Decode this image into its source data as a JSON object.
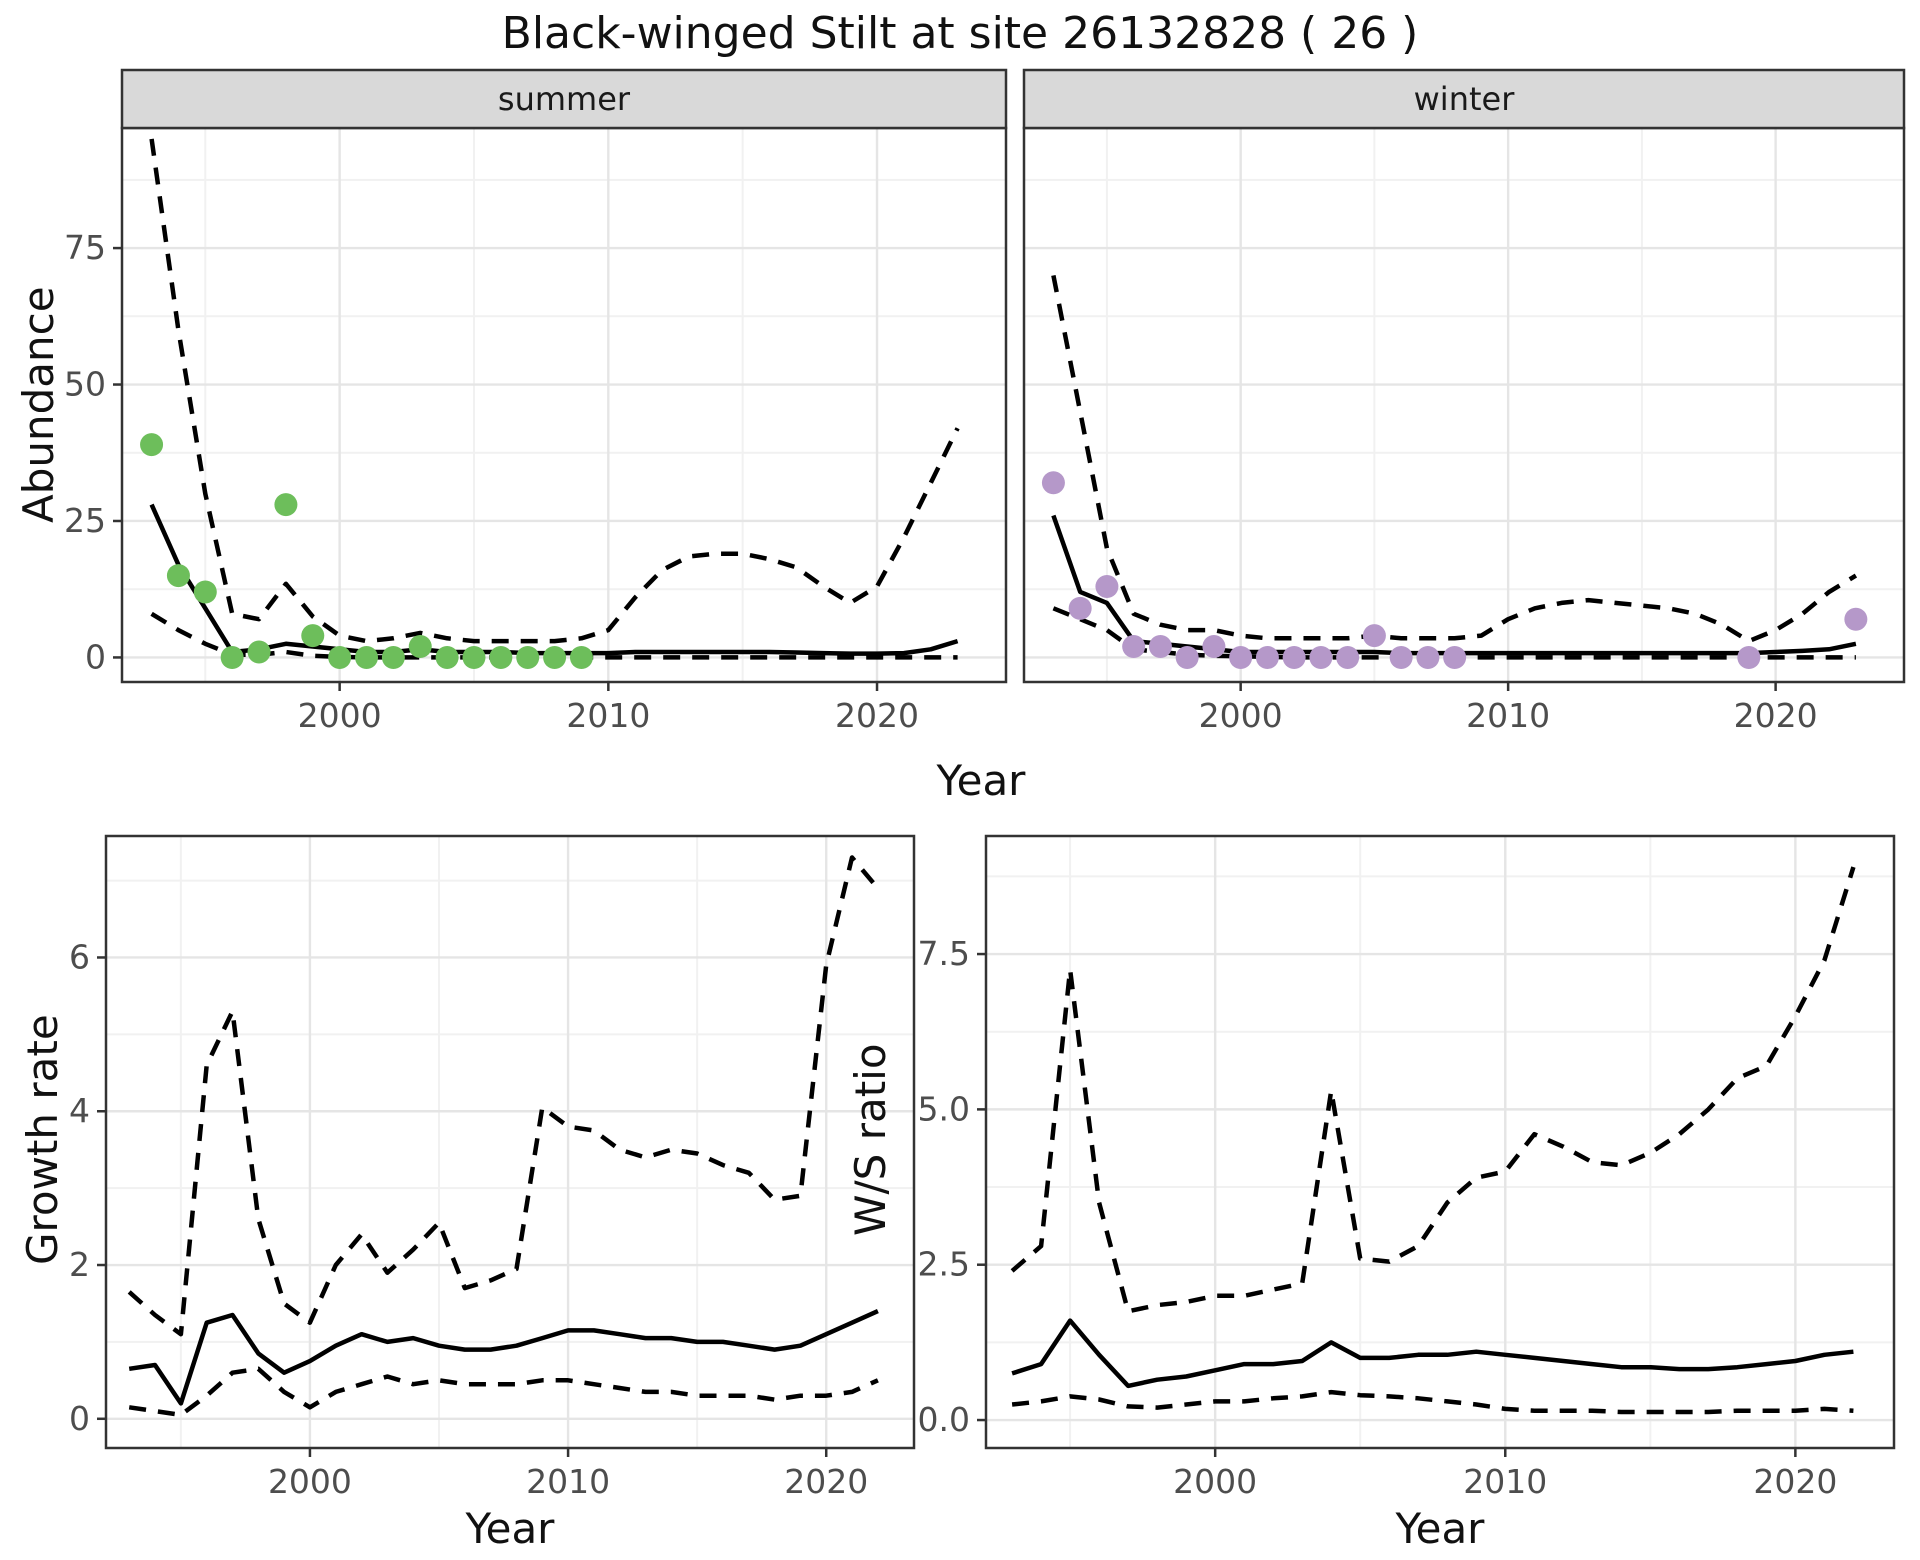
{
  "title": "Black-winged Stilt at site 26132828 ( 26 )",
  "axis_labels": {
    "abundance": "Abundance",
    "year": "Year",
    "growth": "Growth rate",
    "ws": "W/S ratio"
  },
  "facets": {
    "summer": "summer",
    "winter": "winter"
  },
  "colors": {
    "summer_point": "#6dbe5b",
    "winter_point": "#b598c9",
    "line": "#000000",
    "grid_major": "#e5e5e5",
    "grid_minor": "#f1f1f1",
    "strip_bg": "#d9d9d9",
    "panel_border": "#333333",
    "tick_label": "#4d4d4d"
  },
  "chart_data": [
    {
      "id": "summer",
      "type": "scatter",
      "facet_label": "summer",
      "xlabel": "Year",
      "ylabel": "Abundance",
      "xlim": [
        1991.9,
        2024.8
      ],
      "ylim": [
        -4.5,
        97
      ],
      "x_ticks": [
        2000,
        2010,
        2020
      ],
      "x_tick_labels": [
        "2000",
        "2010",
        "2020"
      ],
      "x_minor": [
        1995,
        2005,
        2015
      ],
      "y_ticks": [
        0,
        25,
        50,
        75
      ],
      "y_tick_labels": [
        "0",
        "25",
        "50",
        "75"
      ],
      "y_minor": [
        12.5,
        37.5,
        62.5,
        87.5
      ],
      "observed": {
        "years": [
          1993,
          1994,
          1995,
          1996,
          1997,
          1998,
          1999,
          2000,
          2001,
          2002,
          2003,
          2004,
          2005,
          2006,
          2007,
          2008,
          2009
        ],
        "values": [
          39,
          15,
          12,
          0,
          1,
          28,
          4,
          0,
          0,
          0,
          2,
          0,
          0,
          0,
          0,
          0,
          0
        ]
      },
      "median": {
        "start_year": 1993,
        "values": [
          28,
          17,
          9,
          1,
          1.5,
          2.5,
          2,
          1.5,
          1,
          1,
          1.5,
          1,
          1,
          1,
          0.8,
          0.8,
          0.8,
          0.8,
          1,
          1,
          1,
          1,
          1,
          1,
          0.9,
          0.8,
          0.7,
          0.7,
          0.8,
          1.5,
          3
        ]
      },
      "upper": {
        "start_year": 1993,
        "values": [
          95,
          60,
          30,
          8,
          7,
          13.5,
          7.5,
          4,
          3,
          3.5,
          4.5,
          3.5,
          3,
          3,
          3,
          3,
          3.5,
          5,
          11,
          16,
          18.5,
          19,
          19,
          18,
          16.5,
          13,
          10,
          13,
          22,
          32,
          42
        ]
      },
      "lower": {
        "start_year": 1993,
        "values": [
          8,
          5,
          2.5,
          0.5,
          0.5,
          1,
          0.3,
          0.1,
          0,
          0,
          0,
          0,
          0,
          0,
          0,
          0,
          0,
          0,
          0,
          0,
          0,
          0,
          0,
          0,
          0,
          0,
          0,
          0,
          0,
          0,
          0
        ]
      }
    },
    {
      "id": "winter",
      "type": "scatter",
      "facet_label": "winter",
      "xlabel": "Year",
      "ylabel": "Abundance",
      "xlim": [
        1991.9,
        2024.8
      ],
      "ylim": [
        -4.5,
        97
      ],
      "x_ticks": [
        2000,
        2010,
        2020
      ],
      "x_tick_labels": [
        "2000",
        "2010",
        "2020"
      ],
      "x_minor": [
        1995,
        2005,
        2015
      ],
      "y_ticks": [
        0,
        25,
        50,
        75
      ],
      "y_tick_labels": [
        "0",
        "25",
        "50",
        "75"
      ],
      "y_minor": [
        12.5,
        37.5,
        62.5,
        87.5
      ],
      "observed": {
        "years": [
          1993,
          1994,
          1995,
          1996,
          1997,
          1998,
          1999,
          2000,
          2001,
          2002,
          2003,
          2004,
          2005,
          2006,
          2007,
          2008,
          2019,
          2023
        ],
        "values": [
          32,
          9,
          13,
          2,
          2,
          0,
          2,
          0,
          0,
          0,
          0,
          0,
          4,
          0,
          0,
          0,
          0,
          7
        ]
      },
      "median": {
        "start_year": 1993,
        "values": [
          26,
          12,
          10,
          3,
          2.5,
          2,
          1.5,
          1,
          1,
          1,
          1,
          1,
          1,
          0.8,
          0.8,
          0.8,
          0.8,
          0.8,
          0.8,
          0.8,
          0.8,
          0.8,
          0.8,
          0.8,
          0.8,
          0.8,
          0.8,
          1,
          1.2,
          1.5,
          2.5
        ]
      },
      "upper": {
        "start_year": 1993,
        "values": [
          70,
          45,
          20,
          8,
          6,
          5,
          5,
          4,
          3.5,
          3.5,
          3.5,
          3.5,
          4,
          3.5,
          3.5,
          3.5,
          4,
          7,
          9,
          10,
          10.5,
          10,
          9.5,
          9,
          8,
          6,
          3,
          5,
          8,
          12,
          15
        ]
      },
      "lower": {
        "start_year": 1993,
        "values": [
          9,
          7,
          5,
          1.5,
          1,
          0.5,
          0.3,
          0.2,
          0.1,
          0,
          0,
          0,
          0,
          0,
          0,
          0,
          0,
          0,
          0,
          0,
          0,
          0,
          0,
          0,
          0,
          0,
          0,
          0,
          0,
          0,
          0
        ]
      }
    },
    {
      "id": "growth",
      "type": "line",
      "facet_label": "",
      "xlabel": "Year",
      "ylabel": "Growth rate",
      "xlim": [
        1992.1,
        2023.4
      ],
      "ylim": [
        -0.38,
        7.58
      ],
      "x_ticks": [
        2000,
        2010,
        2020
      ],
      "x_tick_labels": [
        "2000",
        "2010",
        "2020"
      ],
      "x_minor": [
        1995,
        2005,
        2015
      ],
      "y_ticks": [
        0,
        2,
        4,
        6
      ],
      "y_tick_labels": [
        "0",
        "2",
        "4",
        "6"
      ],
      "y_minor": [
        1,
        3,
        5,
        7
      ],
      "median": {
        "start_year": 1993,
        "values": [
          0.65,
          0.7,
          0.2,
          1.25,
          1.35,
          0.85,
          0.6,
          0.75,
          0.95,
          1.1,
          1.0,
          1.05,
          0.95,
          0.9,
          0.9,
          0.95,
          1.05,
          1.15,
          1.15,
          1.1,
          1.05,
          1.05,
          1.0,
          1.0,
          0.95,
          0.9,
          0.95,
          1.1,
          1.25,
          1.4
        ]
      },
      "upper": {
        "start_year": 1993,
        "values": [
          1.65,
          1.35,
          1.1,
          4.6,
          5.3,
          2.6,
          1.5,
          1.25,
          2.0,
          2.4,
          1.9,
          2.2,
          2.55,
          1.7,
          1.8,
          1.95,
          4.05,
          3.8,
          3.75,
          3.5,
          3.4,
          3.5,
          3.45,
          3.3,
          3.2,
          2.85,
          2.9,
          5.9,
          7.3,
          6.9
        ]
      },
      "lower": {
        "start_year": 1993,
        "values": [
          0.15,
          0.1,
          0.05,
          0.3,
          0.6,
          0.65,
          0.35,
          0.15,
          0.35,
          0.45,
          0.55,
          0.45,
          0.5,
          0.45,
          0.45,
          0.45,
          0.5,
          0.5,
          0.45,
          0.4,
          0.35,
          0.35,
          0.3,
          0.3,
          0.3,
          0.25,
          0.3,
          0.3,
          0.35,
          0.5
        ]
      }
    },
    {
      "id": "ws",
      "type": "line",
      "facet_label": "",
      "xlabel": "Year",
      "ylabel": "W/S ratio",
      "xlim": [
        1992.1,
        2023.4
      ],
      "ylim": [
        -0.45,
        9.4
      ],
      "x_ticks": [
        2000,
        2010,
        2020
      ],
      "x_tick_labels": [
        "2000",
        "2010",
        "2020"
      ],
      "x_minor": [
        1995,
        2005,
        2015
      ],
      "y_ticks": [
        0,
        2.5,
        5,
        7.5
      ],
      "y_tick_labels": [
        "0.0",
        "2.5",
        "5.0",
        "7.5"
      ],
      "y_minor": [
        1.25,
        3.75,
        6.25,
        8.75
      ],
      "median": {
        "start_year": 1993,
        "values": [
          0.75,
          0.9,
          1.6,
          1.05,
          0.55,
          0.65,
          0.7,
          0.8,
          0.9,
          0.9,
          0.95,
          1.25,
          1.0,
          1.0,
          1.05,
          1.05,
          1.1,
          1.05,
          1.0,
          0.95,
          0.9,
          0.85,
          0.85,
          0.82,
          0.82,
          0.85,
          0.9,
          0.95,
          1.05,
          1.1
        ]
      },
      "upper": {
        "start_year": 1993,
        "values": [
          2.4,
          2.8,
          7.25,
          3.5,
          1.75,
          1.85,
          1.9,
          2.0,
          2.0,
          2.1,
          2.2,
          5.3,
          2.6,
          2.55,
          2.8,
          3.5,
          3.9,
          4.0,
          4.6,
          4.4,
          4.15,
          4.1,
          4.3,
          4.6,
          5.0,
          5.5,
          5.7,
          6.5,
          7.4,
          8.9
        ]
      },
      "lower": {
        "start_year": 1993,
        "values": [
          0.25,
          0.3,
          0.38,
          0.33,
          0.22,
          0.2,
          0.25,
          0.3,
          0.3,
          0.35,
          0.38,
          0.45,
          0.4,
          0.38,
          0.35,
          0.3,
          0.25,
          0.18,
          0.15,
          0.15,
          0.15,
          0.13,
          0.13,
          0.13,
          0.13,
          0.15,
          0.15,
          0.15,
          0.18,
          0.15
        ]
      }
    }
  ]
}
